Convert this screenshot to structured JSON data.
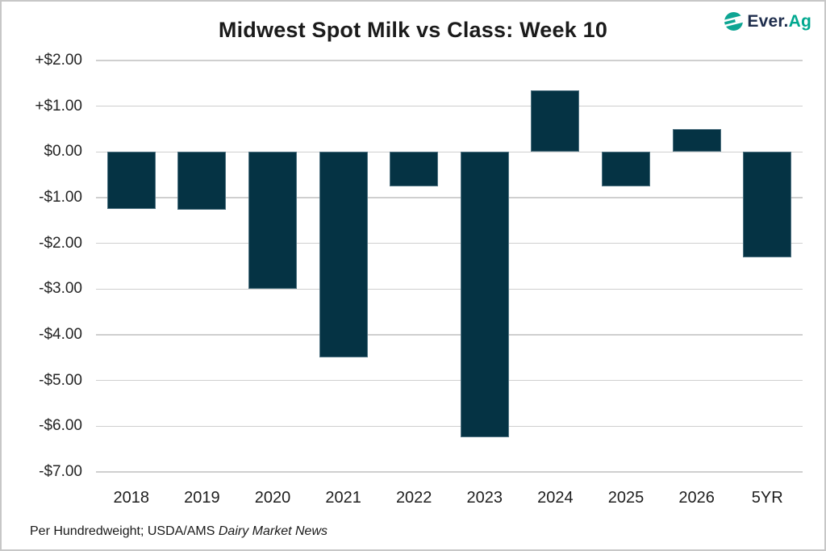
{
  "header": {
    "title": "Midwest Spot Milk vs Class: Week 10",
    "logo": {
      "brand_prefix": "Ever.",
      "brand_suffix": "Ag",
      "prefix_color": "#1e2d4c",
      "suffix_color": "#00a88f",
      "icon_color": "#0ea593"
    }
  },
  "chart_data": {
    "type": "bar",
    "title": "Midwest Spot Milk vs Class: Week 10",
    "categories": [
      "2018",
      "2019",
      "2020",
      "2021",
      "2022",
      "2023",
      "2024",
      "2025",
      "2026",
      "5YR"
    ],
    "values": [
      -1.25,
      -1.27,
      -3.0,
      -4.5,
      -0.75,
      -6.25,
      1.35,
      -0.75,
      0.5,
      -2.3
    ],
    "y_tick_values": [
      2,
      1,
      0,
      -1,
      -2,
      -3,
      -4,
      -5,
      -6,
      -7
    ],
    "y_tick_labels": [
      "+$2.00",
      "+$1.00",
      "$0.00",
      "-$1.00",
      "-$2.00",
      "-$3.00",
      "-$4.00",
      "-$5.00",
      "-$6.00",
      "-$7.00"
    ],
    "ylim": [
      -7,
      2
    ],
    "grid": true,
    "legend": "none",
    "xlabel": "",
    "ylabel": "",
    "bar_color": "#053344",
    "gridline_color": "#cfcfcf"
  },
  "footnote": {
    "text_regular": "Per Hundredweight; USDA/AMS ",
    "text_italic": "Dairy Market News"
  }
}
